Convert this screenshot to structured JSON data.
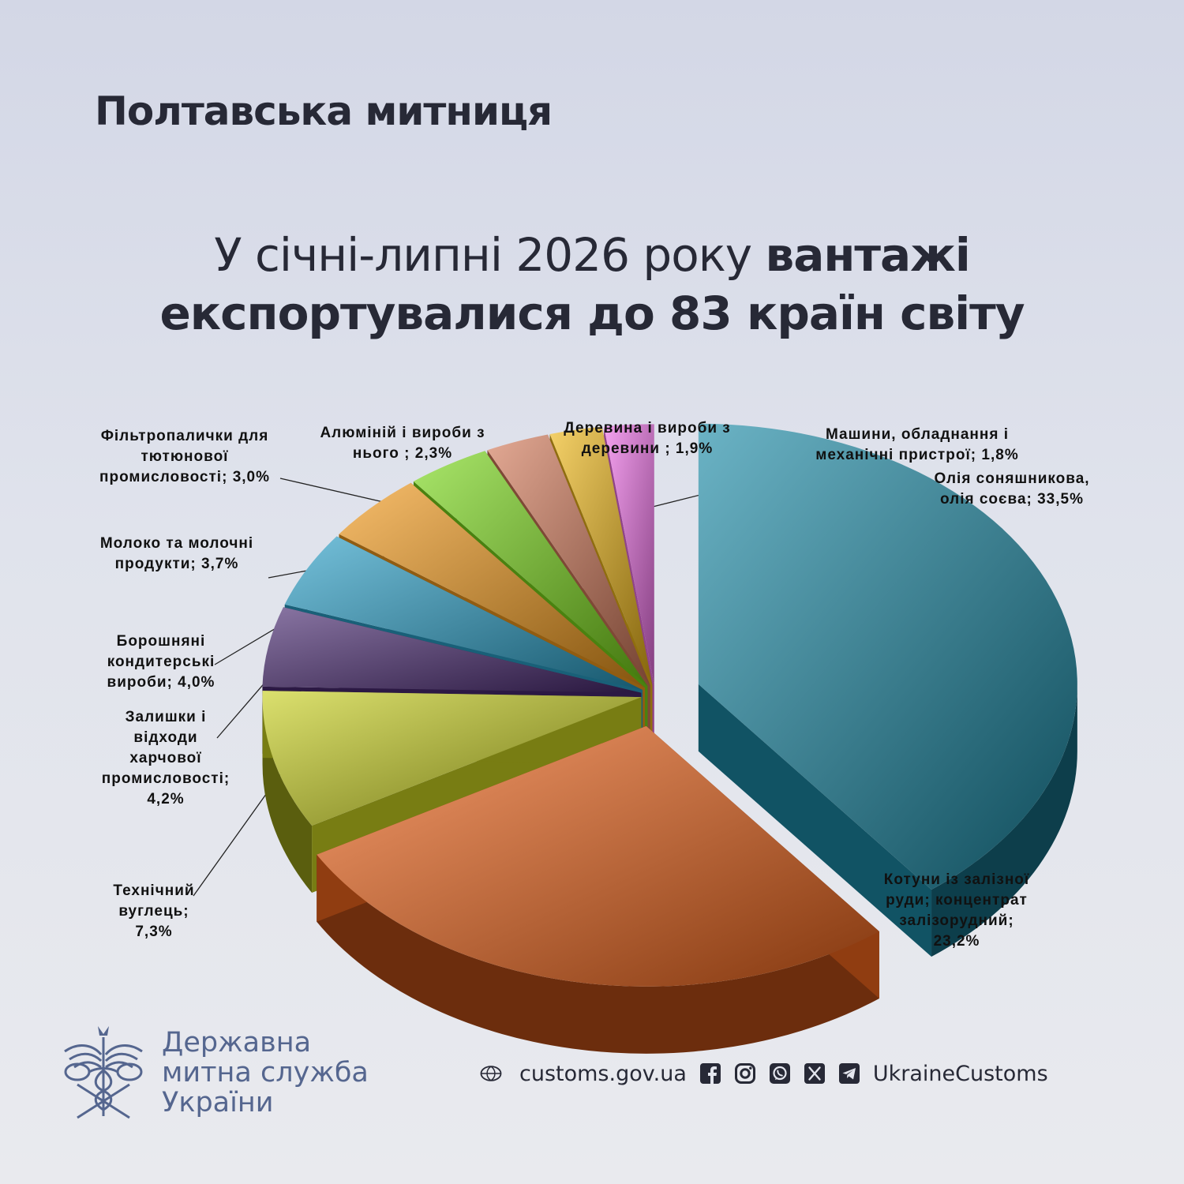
{
  "header": {
    "title": "Полтавська митниця"
  },
  "headline": {
    "normal": "У січні-липні 2026 року ",
    "bold1": "вантажі",
    "bold2": "експортувалися до 83 країн світу"
  },
  "chart_data": {
    "type": "pie",
    "style": "3d-exploded",
    "slices": [
      {
        "label_lines": [
          "Олія  соняшникова,",
          "олія  соєва;  33,5%"
        ],
        "value": 33.5,
        "color": "#1c8aa6"
      },
      {
        "label_lines": [
          "Котуни  із  залізної",
          "руди;  концентрат",
          "залізорудний;",
          "23,2%"
        ],
        "value": 23.2,
        "color": "#f0651c"
      },
      {
        "label_lines": [
          "Технічний",
          "вуглець;",
          "7,3%"
        ],
        "value": 7.3,
        "color": "#c8d020"
      },
      {
        "label_lines": [
          "Залишки  і",
          "відходи",
          "харчової",
          "промисловості;",
          "4,2%"
        ],
        "value": 4.2,
        "color": "#4a2a72"
      },
      {
        "label_lines": [
          "Борошняні",
          "кондитерські",
          "вироби;  4,0%"
        ],
        "value": 4.0,
        "color": "#2aa0c8"
      },
      {
        "label_lines": [
          "Молоко та  молочні",
          "продукти;  3,7%"
        ],
        "value": 3.7,
        "color": "#f29a1c"
      },
      {
        "label_lines": [
          "Фільтропалички  для",
          "тютюнової",
          "промисловості;  3,0%"
        ],
        "value": 3.0,
        "color": "#7ad81a"
      },
      {
        "label_lines": [
          "Алюміній  і  вироби  з",
          "нього ;  2,3%"
        ],
        "value": 2.3,
        "color": "#d47a5a"
      },
      {
        "label_lines": [
          "Деревина  і  вироби  з",
          "деревини ;  1,9%"
        ],
        "value": 1.9,
        "color": "#f0b818"
      },
      {
        "label_lines": [
          "Машини,  обладнання  і",
          "механічні  пристрої;  1,8%"
        ],
        "value": 1.8,
        "color": "#f070e8"
      }
    ]
  },
  "footer": {
    "org_lines": [
      "Державна",
      "митна служба",
      "України"
    ],
    "website": "customs.gov.ua",
    "social_handle": "UkraineCustoms",
    "icons": [
      "globe-icon",
      "facebook-icon",
      "instagram-icon",
      "whatsapp-icon",
      "x-icon",
      "telegram-icon"
    ]
  }
}
